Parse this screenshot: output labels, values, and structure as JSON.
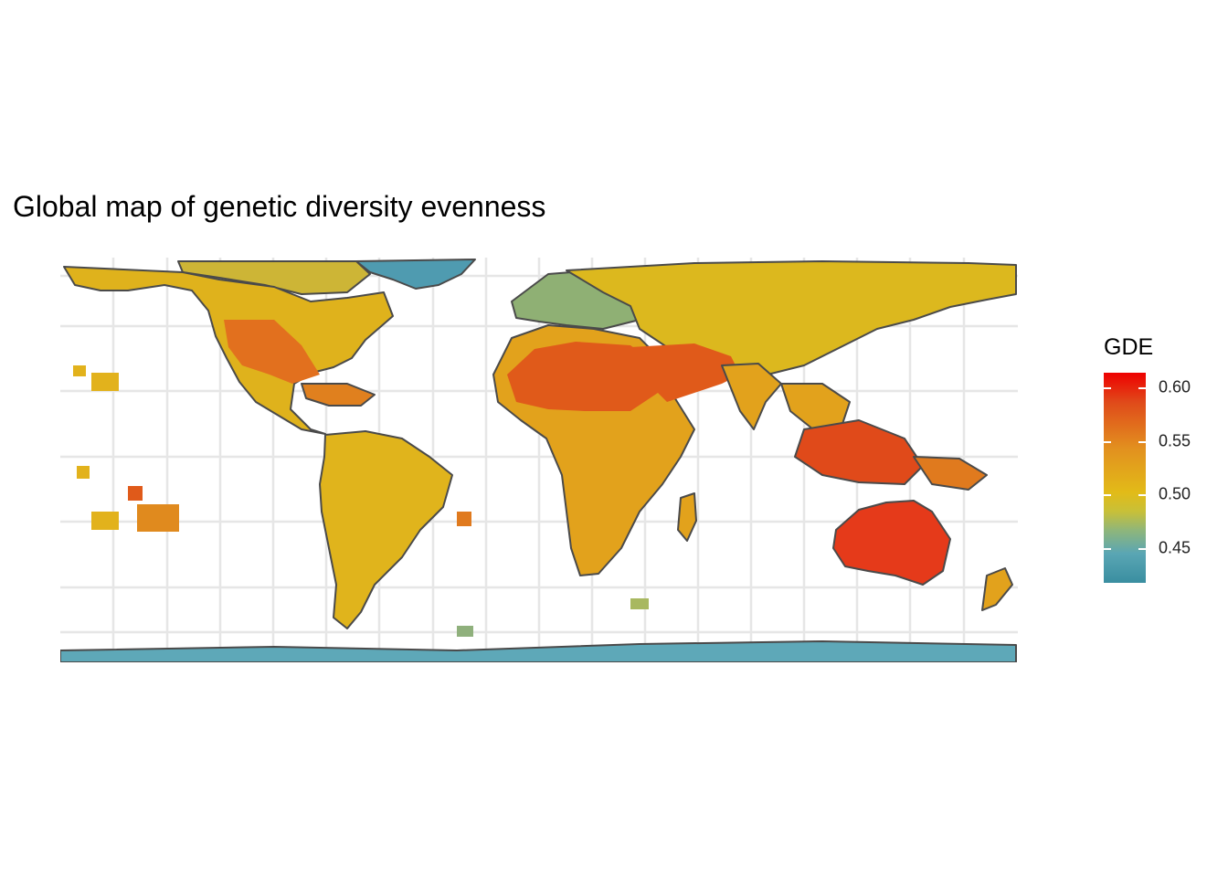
{
  "title": "Global map of genetic diversity evenness",
  "legend": {
    "title": "GDE",
    "ticks": [
      "0.60",
      "0.55",
      "0.50",
      "0.45"
    ],
    "range": [
      0.42,
      0.61
    ],
    "colors": {
      "high": "#ee0000",
      "mid": "#e2bb18",
      "low": "#3a8ea0"
    }
  },
  "map": {
    "projection": "equirectangular",
    "grid": true,
    "background": "#ffffff",
    "coastline_color": "#4a4a4a"
  }
}
